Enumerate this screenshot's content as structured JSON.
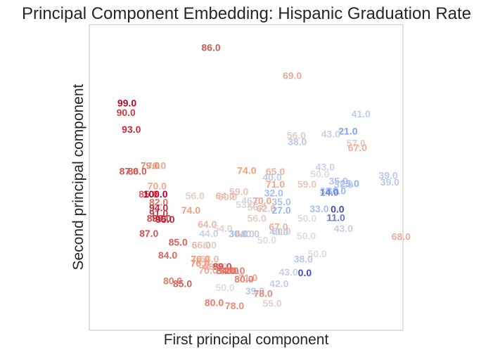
{
  "chart_data": {
    "type": "scatter",
    "title": "Principal Component Embedding: Hispanic Graduation Rate",
    "xlabel": "First principal component",
    "ylabel": "Second principal component",
    "grid": false,
    "xticks": [],
    "yticks": [],
    "xlim": [
      0,
      100
    ],
    "ylim": [
      0,
      100
    ],
    "color_scale": "coolwarm",
    "color_range": [
      0,
      100
    ],
    "points": [
      {
        "x": 38.8,
        "y": 92.2,
        "label": "86.0",
        "value": 86
      },
      {
        "x": 64.7,
        "y": 83.0,
        "label": "69.0",
        "value": 69
      },
      {
        "x": 12.0,
        "y": 74.1,
        "label": "99.0",
        "value": 99
      },
      {
        "x": 11.7,
        "y": 71.0,
        "label": "90.0",
        "value": 90
      },
      {
        "x": 13.4,
        "y": 65.5,
        "label": "93.0",
        "value": 93
      },
      {
        "x": 86.6,
        "y": 70.5,
        "label": "41.0",
        "value": 41
      },
      {
        "x": 82.5,
        "y": 64.9,
        "label": "21.0",
        "value": 21
      },
      {
        "x": 77.0,
        "y": 64.0,
        "label": "43.0",
        "value": 43
      },
      {
        "x": 66.0,
        "y": 63.5,
        "label": "56.0",
        "value": 56
      },
      {
        "x": 66.3,
        "y": 61.4,
        "label": "38.0",
        "value": 38
      },
      {
        "x": 85.0,
        "y": 61.0,
        "label": "57.0",
        "value": 57
      },
      {
        "x": 85.5,
        "y": 59.5,
        "label": "67.0",
        "value": 67
      },
      {
        "x": 19.4,
        "y": 53.6,
        "label": "79.0",
        "value": 79
      },
      {
        "x": 21.4,
        "y": 53.6,
        "label": "70.0",
        "value": 70
      },
      {
        "x": 12.6,
        "y": 51.8,
        "label": "87.0",
        "value": 87
      },
      {
        "x": 15.3,
        "y": 51.8,
        "label": "86.0",
        "value": 86
      },
      {
        "x": 50.2,
        "y": 52.0,
        "label": "74.0",
        "value": 74
      },
      {
        "x": 59.3,
        "y": 51.6,
        "label": "65.0",
        "value": 65
      },
      {
        "x": 58.3,
        "y": 49.8,
        "label": "40.0",
        "value": 40
      },
      {
        "x": 73.5,
        "y": 50.8,
        "label": "50.0",
        "value": 50
      },
      {
        "x": 75.2,
        "y": 53.2,
        "label": "43.0",
        "value": 43
      },
      {
        "x": 95.3,
        "y": 50.4,
        "label": "39.0",
        "value": 39
      },
      {
        "x": 95.8,
        "y": 48.2,
        "label": "39.0",
        "value": 39
      },
      {
        "x": 79.4,
        "y": 48.5,
        "label": "35.0",
        "value": 35
      },
      {
        "x": 83.0,
        "y": 47.7,
        "label": "25.0",
        "value": 25
      },
      {
        "x": 81.0,
        "y": 47.4,
        "label": "37.0",
        "value": 37
      },
      {
        "x": 69.4,
        "y": 47.5,
        "label": "59.0",
        "value": 59
      },
      {
        "x": 59.3,
        "y": 47.5,
        "label": "71.0",
        "value": 71
      },
      {
        "x": 21.6,
        "y": 47.0,
        "label": "70.0",
        "value": 70
      },
      {
        "x": 18.8,
        "y": 44.3,
        "label": "85.0",
        "value": 85
      },
      {
        "x": 21.1,
        "y": 44.3,
        "label": "100.0",
        "value": 100
      },
      {
        "x": 76.5,
        "y": 45.3,
        "label": "38.0",
        "value": 38
      },
      {
        "x": 78.8,
        "y": 45.3,
        "label": "30.0",
        "value": 30
      },
      {
        "x": 76.5,
        "y": 44.9,
        "label": "14.0",
        "value": 14
      },
      {
        "x": 58.8,
        "y": 44.7,
        "label": "32.0",
        "value": 32
      },
      {
        "x": 47.7,
        "y": 45.1,
        "label": "59.0",
        "value": 59
      },
      {
        "x": 33.7,
        "y": 43.7,
        "label": "56.0",
        "value": 56
      },
      {
        "x": 43.3,
        "y": 43.7,
        "label": "64.0",
        "value": 64
      },
      {
        "x": 44.1,
        "y": 43.4,
        "label": "60.0",
        "value": 60
      },
      {
        "x": 22.1,
        "y": 41.6,
        "label": "82.0",
        "value": 82
      },
      {
        "x": 22.1,
        "y": 39.8,
        "label": "94.0",
        "value": 94
      },
      {
        "x": 22.1,
        "y": 38.0,
        "label": "91.0",
        "value": 91
      },
      {
        "x": 51.5,
        "y": 42.1,
        "label": "46.0",
        "value": 46
      },
      {
        "x": 55.1,
        "y": 42.1,
        "label": "70.0",
        "value": 70
      },
      {
        "x": 61.2,
        "y": 41.8,
        "label": "35.0",
        "value": 35
      },
      {
        "x": 49.7,
        "y": 40.8,
        "label": "53.0",
        "value": 53
      },
      {
        "x": 53.4,
        "y": 40.1,
        "label": "56.0",
        "value": 56
      },
      {
        "x": 56.4,
        "y": 39.6,
        "label": "62.0",
        "value": 62
      },
      {
        "x": 61.2,
        "y": 39.0,
        "label": "27.0",
        "value": 27
      },
      {
        "x": 73.3,
        "y": 39.5,
        "label": "33.0",
        "value": 33
      },
      {
        "x": 79.1,
        "y": 39.3,
        "label": "0.0",
        "value": 0
      },
      {
        "x": 32.4,
        "y": 39.0,
        "label": "74.0",
        "value": 74
      },
      {
        "x": 21.4,
        "y": 36.4,
        "label": "88.0",
        "value": 88
      },
      {
        "x": 23.1,
        "y": 36.4,
        "label": "90.0",
        "value": 90
      },
      {
        "x": 24.2,
        "y": 36.0,
        "label": "95.0",
        "value": 95
      },
      {
        "x": 53.4,
        "y": 36.4,
        "label": "56.0",
        "value": 56
      },
      {
        "x": 69.4,
        "y": 36.4,
        "label": "50.0",
        "value": 50
      },
      {
        "x": 78.6,
        "y": 36.6,
        "label": "11.0",
        "value": 11
      },
      {
        "x": 37.6,
        "y": 34.4,
        "label": "64.0",
        "value": 64
      },
      {
        "x": 42.6,
        "y": 33.0,
        "label": "54.0",
        "value": 54
      },
      {
        "x": 60.3,
        "y": 33.6,
        "label": "67.0",
        "value": 67
      },
      {
        "x": 61.2,
        "y": 32.1,
        "label": "60.0",
        "value": 60
      },
      {
        "x": 81.0,
        "y": 33.0,
        "label": "43.0",
        "value": 43
      },
      {
        "x": 19.0,
        "y": 31.4,
        "label": "87.0",
        "value": 87
      },
      {
        "x": 38.1,
        "y": 31.4,
        "label": "44.0",
        "value": 44
      },
      {
        "x": 47.5,
        "y": 31.3,
        "label": "30.0",
        "value": 30
      },
      {
        "x": 49.6,
        "y": 31.3,
        "label": "60.0",
        "value": 60
      },
      {
        "x": 51.2,
        "y": 31.3,
        "label": "40.0",
        "value": 40
      },
      {
        "x": 60.5,
        "y": 32.0,
        "label": "40.0",
        "value": 40
      },
      {
        "x": 69.2,
        "y": 30.6,
        "label": "50.0",
        "value": 50
      },
      {
        "x": 56.6,
        "y": 29.2,
        "label": "50.0",
        "value": 50
      },
      {
        "x": 28.3,
        "y": 28.6,
        "label": "85.0",
        "value": 85
      },
      {
        "x": 99.4,
        "y": 30.4,
        "label": "68.0",
        "value": 68
      },
      {
        "x": 35.7,
        "y": 27.6,
        "label": "66.0",
        "value": 66
      },
      {
        "x": 37.5,
        "y": 27.6,
        "label": "56.0",
        "value": 56
      },
      {
        "x": 25.0,
        "y": 24.3,
        "label": "84.0",
        "value": 84
      },
      {
        "x": 35.4,
        "y": 23.0,
        "label": "76.0",
        "value": 76
      },
      {
        "x": 38.3,
        "y": 23.0,
        "label": "64.0",
        "value": 64
      },
      {
        "x": 72.7,
        "y": 24.8,
        "label": "50.0",
        "value": 50
      },
      {
        "x": 68.2,
        "y": 23.0,
        "label": "38.0",
        "value": 38
      },
      {
        "x": 35.3,
        "y": 21.6,
        "label": "76.0",
        "value": 76
      },
      {
        "x": 39.3,
        "y": 20.6,
        "label": "69.0",
        "value": 69
      },
      {
        "x": 41.0,
        "y": 20.6,
        "label": "60.0",
        "value": 60
      },
      {
        "x": 42.4,
        "y": 20.6,
        "label": "89.0",
        "value": 89
      },
      {
        "x": 43.5,
        "y": 19.2,
        "label": "84.0",
        "value": 84
      },
      {
        "x": 44.6,
        "y": 19.2,
        "label": "81.0",
        "value": 81
      },
      {
        "x": 46.6,
        "y": 19.2,
        "label": "80.0",
        "value": 80
      },
      {
        "x": 37.9,
        "y": 19.4,
        "label": "70.0",
        "value": 70
      },
      {
        "x": 63.5,
        "y": 18.8,
        "label": "43.0",
        "value": 43
      },
      {
        "x": 68.7,
        "y": 18.6,
        "label": "0.0",
        "value": 0
      },
      {
        "x": 50.6,
        "y": 16.9,
        "label": "71.0",
        "value": 71
      },
      {
        "x": 49.3,
        "y": 16.5,
        "label": "80.0",
        "value": 80
      },
      {
        "x": 26.6,
        "y": 15.9,
        "label": "80.0",
        "value": 80
      },
      {
        "x": 29.7,
        "y": 15.0,
        "label": "85.0",
        "value": 85
      },
      {
        "x": 60.5,
        "y": 15.0,
        "label": "42.0",
        "value": 42
      },
      {
        "x": 43.3,
        "y": 13.7,
        "label": "50.0",
        "value": 50
      },
      {
        "x": 52.8,
        "y": 12.6,
        "label": "39.0",
        "value": 39
      },
      {
        "x": 55.4,
        "y": 11.8,
        "label": "78.0",
        "value": 78
      },
      {
        "x": 39.8,
        "y": 8.8,
        "label": "80.0",
        "value": 80
      },
      {
        "x": 46.3,
        "y": 7.7,
        "label": "78.0",
        "value": 78
      },
      {
        "x": 58.3,
        "y": 8.6,
        "label": "55.0",
        "value": 55
      }
    ]
  }
}
